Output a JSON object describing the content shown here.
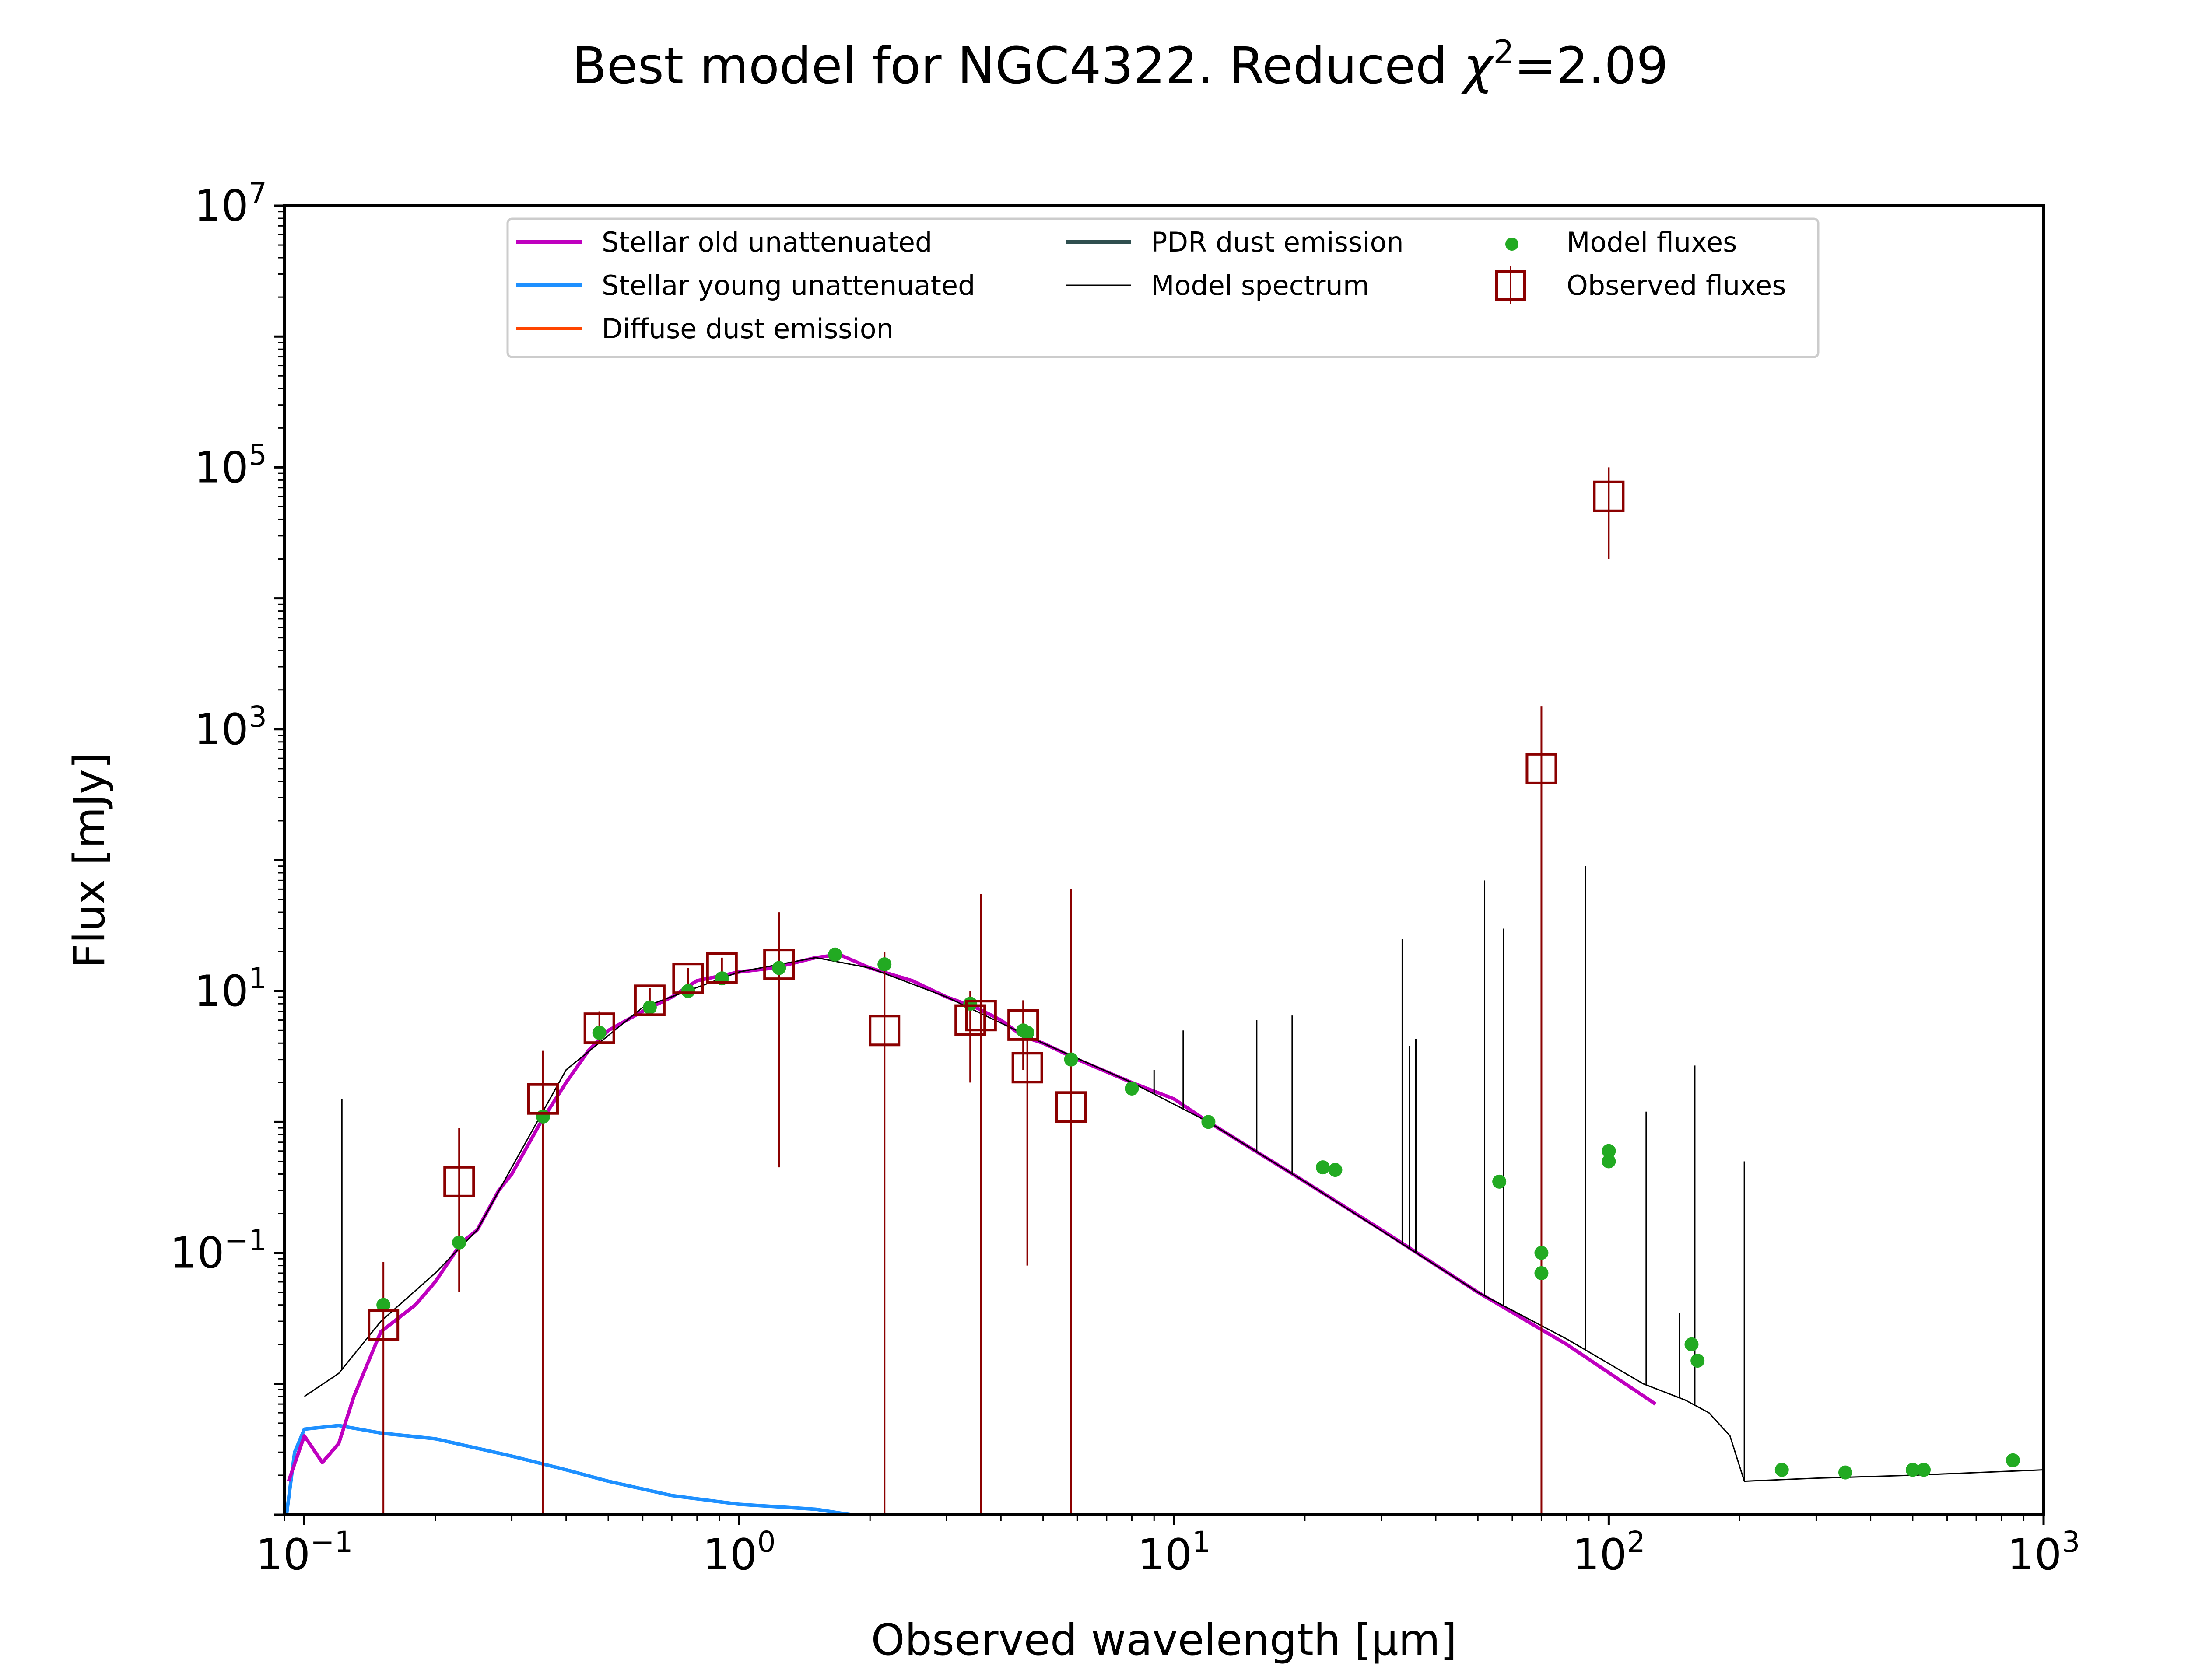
{
  "chart_data": {
    "type": "line",
    "title": "Best model for NGC4322. Reduced χ²=2.09",
    "title_parts": {
      "main": "Best model for NGC4322. Reduced ",
      "chi": "χ",
      "sup": "2",
      "value": "=2.09"
    },
    "xlabel": "Observed wavelength [μm]",
    "ylabel": "Flux [mJy]",
    "x_scale": "log",
    "y_scale": "log",
    "xlim": [
      0.09,
      1000
    ],
    "ylim": [
      0.001,
      10000000
    ],
    "grid": false,
    "legend_placement": "top-center",
    "x_ticks": [
      {
        "base": "10",
        "exp": "−1",
        "value": 0.1
      },
      {
        "base": "10",
        "exp": "0",
        "value": 1
      },
      {
        "base": "10",
        "exp": "1",
        "value": 10
      },
      {
        "base": "10",
        "exp": "2",
        "value": 100
      },
      {
        "base": "10",
        "exp": "3",
        "value": 1000
      }
    ],
    "y_ticks": [
      {
        "base": "10",
        "exp": "−1",
        "value": 0.1
      },
      {
        "base": "10",
        "exp": "1",
        "value": 10
      },
      {
        "base": "10",
        "exp": "3",
        "value": 1000
      },
      {
        "base": "10",
        "exp": "5",
        "value": 100000
      },
      {
        "base": "10",
        "exp": "7",
        "value": 10000000
      }
    ],
    "legend": [
      {
        "label": "Stellar old unattenuated",
        "type": "line",
        "color": "#bf00bf"
      },
      {
        "label": "Stellar young unattenuated",
        "type": "line",
        "color": "#1e90ff"
      },
      {
        "label": "Diffuse dust emission",
        "type": "line",
        "color": "#ff4500"
      },
      {
        "label": "PDR dust emission",
        "type": "line",
        "color": "#2f4f4f"
      },
      {
        "label": "Model spectrum",
        "type": "thin-line",
        "color": "#000000"
      },
      {
        "label": "Model fluxes",
        "type": "dot",
        "color": "#22aa22"
      },
      {
        "label": "Observed fluxes",
        "type": "square",
        "color": "#8b0000"
      }
    ],
    "series": [
      {
        "name": "Stellar old unattenuated",
        "color": "#bf00bf",
        "points": [
          [
            0.092,
            0.0018
          ],
          [
            0.1,
            0.004
          ],
          [
            0.11,
            0.0025
          ],
          [
            0.12,
            0.0035
          ],
          [
            0.13,
            0.008
          ],
          [
            0.15,
            0.025
          ],
          [
            0.18,
            0.04
          ],
          [
            0.2,
            0.06
          ],
          [
            0.23,
            0.12
          ],
          [
            0.25,
            0.15
          ],
          [
            0.28,
            0.3
          ],
          [
            0.3,
            0.4
          ],
          [
            0.35,
            1.0
          ],
          [
            0.4,
            2.0
          ],
          [
            0.45,
            3.5
          ],
          [
            0.5,
            5.0
          ],
          [
            0.6,
            7.0
          ],
          [
            0.7,
            9.0
          ],
          [
            0.8,
            12.0
          ],
          [
            0.9,
            13.0
          ],
          [
            1.0,
            14.0
          ],
          [
            1.2,
            15.0
          ],
          [
            1.5,
            18.0
          ],
          [
            1.7,
            19.0
          ],
          [
            2.0,
            15.0
          ],
          [
            2.5,
            12.0
          ],
          [
            3.0,
            9.0
          ],
          [
            3.5,
            7.5
          ],
          [
            4.0,
            6.0
          ],
          [
            4.5,
            4.5
          ],
          [
            5.0,
            4.0
          ],
          [
            6.0,
            3.0
          ],
          [
            8.0,
            2.0
          ],
          [
            10.0,
            1.5
          ],
          [
            12.0,
            1.0
          ],
          [
            20.0,
            0.35
          ],
          [
            30.0,
            0.15
          ],
          [
            50.0,
            0.05
          ],
          [
            80.0,
            0.02
          ],
          [
            128.0,
            0.007
          ]
        ]
      },
      {
        "name": "Stellar young unattenuated",
        "color": "#1e90ff",
        "points": [
          [
            0.091,
            0.001
          ],
          [
            0.095,
            0.003
          ],
          [
            0.1,
            0.0045
          ],
          [
            0.12,
            0.0048
          ],
          [
            0.15,
            0.0042
          ],
          [
            0.2,
            0.0038
          ],
          [
            0.3,
            0.0028
          ],
          [
            0.4,
            0.0022
          ],
          [
            0.5,
            0.0018
          ],
          [
            0.7,
            0.0014
          ],
          [
            1.0,
            0.0012
          ],
          [
            1.5,
            0.0011
          ],
          [
            1.8,
            0.001
          ]
        ]
      },
      {
        "name": "Model spectrum",
        "color": "#000000",
        "points": [
          [
            0.1,
            0.008
          ],
          [
            0.12,
            0.012
          ],
          [
            0.15,
            0.03
          ],
          [
            0.2,
            0.07
          ],
          [
            0.25,
            0.15
          ],
          [
            0.3,
            0.45
          ],
          [
            0.4,
            2.5
          ],
          [
            0.6,
            7.5
          ],
          [
            1.0,
            14.0
          ],
          [
            1.5,
            18.0
          ],
          [
            2.0,
            15.0
          ],
          [
            3.0,
            9.0
          ],
          [
            5.0,
            4.0
          ],
          [
            8.0,
            2.0
          ],
          [
            12.0,
            1.0
          ],
          [
            20.0,
            0.35
          ],
          [
            50.0,
            0.05
          ],
          [
            80.0,
            0.022
          ],
          [
            120.0,
            0.01
          ],
          [
            150.0,
            0.0075
          ],
          [
            170.0,
            0.006
          ],
          [
            190.0,
            0.004
          ],
          [
            205.0,
            0.0018
          ],
          [
            300.0,
            0.0019
          ],
          [
            500.0,
            0.002
          ],
          [
            1000.0,
            0.0022
          ]
        ],
        "emission_lines": [
          [
            0.122,
            1.5
          ],
          [
            9.0,
            2.5
          ],
          [
            10.5,
            5.0
          ],
          [
            15.5,
            6.0
          ],
          [
            18.7,
            6.5
          ],
          [
            33.5,
            25.0
          ],
          [
            34.8,
            3.8
          ],
          [
            36.0,
            4.3
          ],
          [
            51.8,
            70.0
          ],
          [
            57.3,
            30.0
          ],
          [
            88.4,
            90.0
          ],
          [
            121.9,
            1.2
          ],
          [
            145.5,
            0.035
          ],
          [
            157.7,
            2.7
          ],
          [
            205.0,
            0.5
          ]
        ]
      }
    ],
    "model_fluxes": {
      "name": "Model fluxes",
      "color": "#22aa22",
      "points": [
        [
          0.152,
          0.04
        ],
        [
          0.227,
          0.12
        ],
        [
          0.354,
          1.1
        ],
        [
          0.477,
          4.8
        ],
        [
          0.623,
          7.5
        ],
        [
          0.763,
          10.0
        ],
        [
          0.913,
          12.5
        ],
        [
          1.235,
          15.0
        ],
        [
          1.662,
          19.0
        ],
        [
          2.159,
          16.0
        ],
        [
          3.4,
          8.0
        ],
        [
          4.5,
          5.0
        ],
        [
          4.6,
          4.8
        ],
        [
          5.8,
          3.0
        ],
        [
          8.0,
          1.8
        ],
        [
          12.0,
          1.0
        ],
        [
          22.0,
          0.45
        ],
        [
          23.5,
          0.43
        ],
        [
          56.0,
          0.35
        ],
        [
          70.0,
          0.1
        ],
        [
          70.0,
          0.07
        ],
        [
          100.0,
          0.5
        ],
        [
          100.0,
          0.6
        ],
        [
          155.0,
          0.02
        ],
        [
          160.0,
          0.015
        ],
        [
          250.0,
          0.0022
        ],
        [
          350.0,
          0.0021
        ],
        [
          500.0,
          0.0022
        ],
        [
          530.0,
          0.0022
        ],
        [
          850.0,
          0.0026
        ]
      ]
    },
    "observed_fluxes": {
      "name": "Observed fluxes",
      "color": "#8b0000",
      "points": [
        {
          "x": 0.152,
          "y": 0.028,
          "yerr_lo": 0.001,
          "yerr_hi": 0.085
        },
        {
          "x": 0.227,
          "y": 0.35,
          "yerr_lo": 0.05,
          "yerr_hi": 0.9
        },
        {
          "x": 0.354,
          "y": 1.5,
          "yerr_lo": 0.001,
          "yerr_hi": 3.5
        },
        {
          "x": 0.477,
          "y": 5.2,
          "yerr_lo": 4.0,
          "yerr_hi": 7.0
        },
        {
          "x": 0.623,
          "y": 8.5,
          "yerr_lo": 6.5,
          "yerr_hi": 10.5
        },
        {
          "x": 0.763,
          "y": 12.5,
          "yerr_lo": 10.0,
          "yerr_hi": 15.0
        },
        {
          "x": 0.913,
          "y": 15.0,
          "yerr_lo": 12.0,
          "yerr_hi": 18.0
        },
        {
          "x": 1.235,
          "y": 16.0,
          "yerr_lo": 0.45,
          "yerr_hi": 40.0
        },
        {
          "x": 2.159,
          "y": 5.0,
          "yerr_lo": 0.001,
          "yerr_hi": 20.0
        },
        {
          "x": 3.4,
          "y": 6.0,
          "yerr_lo": 2.0,
          "yerr_hi": 10.0
        },
        {
          "x": 3.6,
          "y": 6.5,
          "yerr_lo": 0.001,
          "yerr_hi": 55.0
        },
        {
          "x": 4.5,
          "y": 5.5,
          "yerr_lo": 2.5,
          "yerr_hi": 8.5
        },
        {
          "x": 4.6,
          "y": 2.6,
          "yerr_lo": 0.08,
          "yerr_hi": 5.0
        },
        {
          "x": 5.8,
          "y": 1.3,
          "yerr_lo": 0.001,
          "yerr_hi": 60.0
        },
        {
          "x": 70.0,
          "y": 500.0,
          "yerr_lo": 0.001,
          "yerr_hi": 1500.0
        },
        {
          "x": 100.0,
          "y": 60000.0,
          "yerr_lo": 20000.0,
          "yerr_hi": 100000.0
        }
      ]
    }
  }
}
